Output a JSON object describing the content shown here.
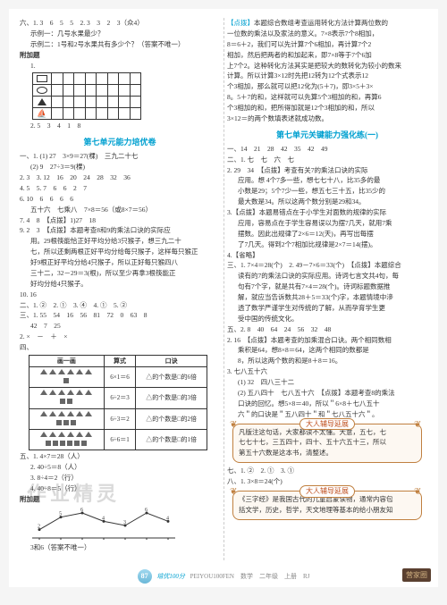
{
  "leftCol": {
    "top1": "六、1. 3　6　5　5　2. 3　3　2　3（众4）",
    "top2": "示例一：几号水果最少？",
    "top3": "示例二：1号和2号水果共有多少个？（答案不唯一）",
    "bonusLabel": "附加题",
    "bonusNum": "1.",
    "shapeCounts": "2. 5　3　4　1　8",
    "unitTitle": "第七单元能力培优卷",
    "l1": "一、1. (1) 27　3×9＝27(棵)　三九二十七",
    "l1b": "(2) 9　27÷3＝9(棵)",
    "l2": "2. 3　3. 12　16　20　24　28　32　36",
    "l3": "4. 5　5. 7　6　6　2　7",
    "l4": "6. 10　6　6　6　6",
    "l5": "五十六　七乘八　7×8＝56（或8×7＝56）",
    "l6": "7. 4　8　【点拨】1)27　18",
    "l7": "9. 2　3　【点拨】本题考查8和9的乘法口诀的实际应",
    "l7b": "用。29根筷能恰正好平均分给3只猴子，想三九二十",
    "l7c": "七，所以还剩两根正好平均分给每只猴子，这样每只猴正",
    "l7d": "好9根正好平均分给4只猴子，所以正好每只猴四八",
    "l7e": "三十二，32－29＝3(根)，所以至少再拿3根筷能正",
    "l7f": "好均分给4只猴子。",
    "l8": "10. 16",
    "l9": "二、1. ②　2. ①　3. ④　4. ①　5. ②",
    "l10": "三、1. 55　54　16　56　81　72　0　63　8",
    "l11": "42　7　25",
    "l12": "2. ×　－　＋　×",
    "tblHead": [
      "画一画",
      "算式",
      "口诀"
    ],
    "tblRows": [
      [
        "tri4",
        "6×1＝6",
        "△的个数是□的6倍"
      ],
      [
        "tri6sq3",
        "6÷2＝3",
        "△的个数是□的3倍"
      ],
      [
        "tri6sq2",
        "6÷3＝2",
        "△的个数是□的2倍"
      ],
      [
        "tri6sq6",
        "6÷6＝1",
        "△的个数是□的1倍"
      ]
    ],
    "l13": "五、1. 4×7＝28（人）",
    "l14": "2. 40÷5＝8（人）",
    "l15": "3. 8÷4＝2（行）",
    "l16": "4. 40÷8＝5（行）",
    "l17": "附加题",
    "chart": {
      "points": [
        2,
        5,
        6,
        4,
        3,
        6,
        4
      ],
      "ymax": 6
    },
    "l18": "3和6（答案不唯一）"
  },
  "rightCol": {
    "p1": "【点拨】本题综合数组考查运用转化方法计算两位数的",
    "p1b": "一位数的乘法以及家法的意义。7×8表示7个8相加，",
    "p1c": "8＝6＋2，我们可以先计算7个6相加，再计算7个2",
    "p1d": "相加，然后把两者的和加起来，即7×8等于7个6加",
    "p1e": "上7个2。这种转化方法其实是把较大的数转化为较小的数来",
    "p1f": "计算。所以计算3×12时先把12转为12个式表示12",
    "p1g": "个3相加，那么就可以把12化为(5＋7)，即3×5＋3×",
    "p1h": "8。5＋7的和，这样就可以先算5个3相加的和，再算6",
    "p1i": "个3相加的和，把所得加就是12个3相加的和，所以",
    "p1j": "3×12＝的两个数填表述就成功数。",
    "unitTitle": "第七单元关键能力强化练(一)",
    "r1": "一、14　21　28　42　35　42　49",
    "r2": "二、1. 七　七　六　七",
    "r3": "2. 29　34　【点拨】考查有关7的乘法口诀的实际",
    "r3b": "应用。想 4个7多一些，想七七十八，比35多的最",
    "r3c": "小数是29；5个7少一些，想五七三十五，比35少的",
    "r3d": "最大数是34。所以这两个数分别是29和34。",
    "r4": "3.【点拨】本题易错点在于小学生对面数的规律的实际",
    "r4b": "应用，容易点在于学生容易误以为摆7几天，就用7乘",
    "r4c": "摆数。因此出规律了2×6＝12(天)，再写出每摆",
    "r4d": "了7几天。得到2个7相加比规律是2×7＝14(摆)。",
    "r5": "4.【省略】",
    "r6": "三、1. 7×4＝28(个)　2. 49－7×6＝33(个)　【点拨】本题综合",
    "r6b": "读有的7的乘法口诀的实际应用。诗词七言文共4句，每",
    "r6c": "句有7个字，就是共有7×4＝28(个)。诗词标题数据推",
    "r6d": "解，就应当告诉数共28＋5＝33(个)字，本题情境中滲",
    "r6e": "透了数学严谨学生对传统的了解，从而孕育学生更",
    "r6f": "受中国的传统文化。",
    "r7": "五、2. 8　40　64　24　56　32　48",
    "r8": "2. 16　【点拨】本题考查的加乘混合口诀。两个相同数相",
    "r8b": "乘积是64，想8×8＝64，这两个相同的数都是",
    "r8c": "8，所以这两个数的和是8＋8＝16。",
    "r9": "3. 七八五十六",
    "r10": "(1) 32　四八三十二",
    "r11": "(2) 五八四十　七八五十六　【点拨】本题考查8的乘法",
    "r11b": "口诀的回忆。想5×8＝40，所以＂6×8＋七八五十",
    "r11c": "六＂的口诀是＂五八四十＂和＂七八五十六＂。",
    "advisor1Title": "大人辅导延展",
    "advisor1": "凡版注这句话，大家都读不太懂。大意，五七，七",
    "advisor1b": "七七十七，三五四十，四十、五十六五十三，所以",
    "advisor1c": "第五十六数是这本书，清整述。",
    "r12": "七、1. ②　2. ①　3. ①",
    "r13": "八、1. 3×8＝24(个)",
    "advisor2Title": "大人辅导延展",
    "advisor2": "《三字经》是我国古代的儿童启蒙读物，通常内容包",
    "advisor2b": "括文学，历史，哲学，天文地理等基本的给小朋友知"
  },
  "footer": {
    "pageNum": "87",
    "text": "培优100分",
    "sub": "PEIYOU100FEN　数学　二年级　上册　RJ"
  },
  "stamp": "营家圈",
  "watermark": "作业精灵"
}
